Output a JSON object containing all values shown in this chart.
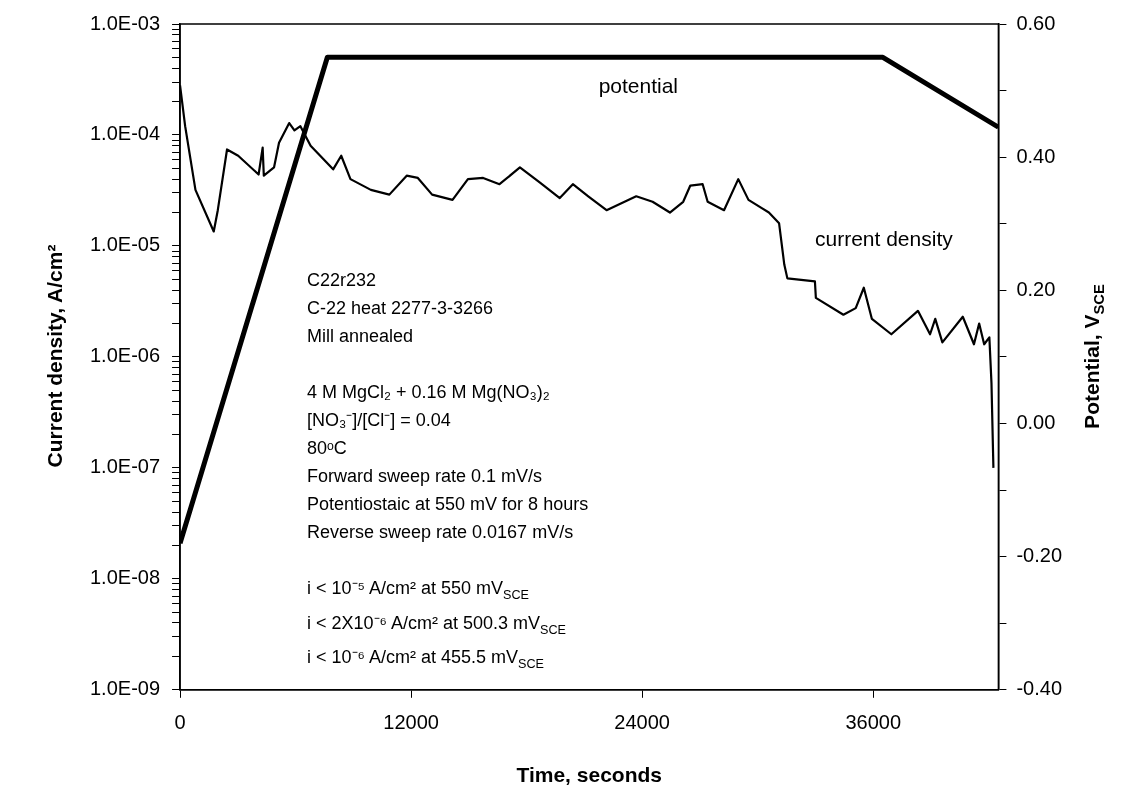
{
  "chart_data": {
    "type": "line",
    "xlabel": "Time, seconds",
    "ylabel": "Current density, A/cm²",
    "y2label": "Potential, V$_{SCE}$",
    "xlim": [
      0,
      42500
    ],
    "xticks": [
      0,
      12000,
      24000,
      36000
    ],
    "log": "y",
    "ylim": [
      1e-09,
      0.001
    ],
    "yticks": [
      {
        "value": 1e-09,
        "label": "1.0E-09"
      },
      {
        "value": 2e-09,
        "label": null
      },
      {
        "value": 3e-09,
        "label": null
      },
      {
        "value": 4e-09,
        "label": null
      },
      {
        "value": 5e-09,
        "label": null
      },
      {
        "value": 6e-09,
        "label": null
      },
      {
        "value": 7e-09,
        "label": null
      },
      {
        "value": 8e-09,
        "label": null
      },
      {
        "value": 9e-09,
        "label": null
      },
      {
        "value": 1e-08,
        "label": "1.0E-08"
      },
      {
        "value": 2e-08,
        "label": null
      },
      {
        "value": 3e-08,
        "label": null
      },
      {
        "value": 4e-08,
        "label": null
      },
      {
        "value": 5e-08,
        "label": null
      },
      {
        "value": 6e-08,
        "label": null
      },
      {
        "value": 7e-08,
        "label": null
      },
      {
        "value": 8e-08,
        "label": null
      },
      {
        "value": 9e-08,
        "label": null
      },
      {
        "value": 1e-07,
        "label": "1.0E-07"
      },
      {
        "value": 2e-07,
        "label": null
      },
      {
        "value": 3e-07,
        "label": null
      },
      {
        "value": 4e-07,
        "label": null
      },
      {
        "value": 5e-07,
        "label": null
      },
      {
        "value": 6e-07,
        "label": null
      },
      {
        "value": 7e-07,
        "label": null
      },
      {
        "value": 8e-07,
        "label": null
      },
      {
        "value": 9e-07,
        "label": null
      },
      {
        "value": 1e-06,
        "label": "1.0E-06"
      },
      {
        "value": 2e-06,
        "label": null
      },
      {
        "value": 3e-06,
        "label": null
      },
      {
        "value": 4e-06,
        "label": null
      },
      {
        "value": 5e-06,
        "label": null
      },
      {
        "value": 6e-06,
        "label": null
      },
      {
        "value": 7e-06,
        "label": null
      },
      {
        "value": 8e-06,
        "label": null
      },
      {
        "value": 9e-06,
        "label": null
      },
      {
        "value": 1e-05,
        "label": "1.0E-05"
      },
      {
        "value": 2e-05,
        "label": null
      },
      {
        "value": 3e-05,
        "label": null
      },
      {
        "value": 4e-05,
        "label": null
      },
      {
        "value": 5e-05,
        "label": null
      },
      {
        "value": 6e-05,
        "label": null
      },
      {
        "value": 7e-05,
        "label": null
      },
      {
        "value": 8e-05,
        "label": null
      },
      {
        "value": 9e-05,
        "label": null
      },
      {
        "value": 0.0001,
        "label": "1.0E-04"
      },
      {
        "value": 0.0002,
        "label": null
      },
      {
        "value": 0.0003,
        "label": null
      },
      {
        "value": 0.0004,
        "label": null
      },
      {
        "value": 0.0005,
        "label": null
      },
      {
        "value": 0.0006,
        "label": null
      },
      {
        "value": 0.0007,
        "label": null
      },
      {
        "value": 0.0008,
        "label": null
      },
      {
        "value": 0.0009,
        "label": null
      },
      {
        "value": 0.001,
        "label": "1.0E-03"
      }
    ],
    "y2lim": [
      -0.4,
      0.6
    ],
    "y2ticks": [
      {
        "value": -0.4,
        "label": "-0.40"
      },
      {
        "value": -0.3,
        "label": null
      },
      {
        "value": -0.2,
        "label": "-0.20"
      },
      {
        "value": -0.1,
        "label": null
      },
      {
        "value": 0,
        "label": "0.00"
      },
      {
        "value": 0.1,
        "label": null
      },
      {
        "value": 0.2,
        "label": "0.20"
      },
      {
        "value": 0.3,
        "label": null
      },
      {
        "value": 0.4,
        "label": "0.40"
      },
      {
        "value": 0.5,
        "label": null
      },
      {
        "value": 0.6,
        "label": "0.60"
      }
    ],
    "series": [
      {
        "name": "current density",
        "color": "#000000",
        "x": [
          0,
          265,
          800,
          1750,
          1960,
          2440,
          3020,
          4080,
          4290,
          4350,
          4880,
          5140,
          5670,
          5940,
          6250,
          6780,
          7950,
          8370,
          8850,
          9910,
          10870,
          11770,
          12350,
          13090,
          14150,
          14950,
          15740,
          16590,
          17650,
          18710,
          19720,
          20400,
          21200,
          22150,
          23690,
          24540,
          25440,
          26130,
          26500,
          27140,
          27400,
          28250,
          28990,
          29520,
          30580,
          31110,
          31380,
          31540,
          32970,
          33020,
          34450,
          35090,
          35510,
          35930,
          36940,
          38320,
          38950,
          39220,
          39590,
          40650,
          41230,
          41500,
          41760,
          42030,
          42140,
          42240
        ],
        "values": [
          0.00028,
          0.00012,
          3.2e-05,
          1.35e-05,
          2.1e-05,
          7.4e-05,
          6.5e-05,
          4.4e-05,
          7.7e-05,
          4.3e-05,
          5.1e-05,
          8.5e-05,
          0.000128,
          0.00011,
          0.00012,
          8e-05,
          4.9e-05,
          6.5e-05,
          4e-05,
          3.2e-05,
          2.9e-05,
          4.3e-05,
          4.1e-05,
          2.9e-05,
          2.6e-05,
          4e-05,
          4.1e-05,
          3.6e-05,
          5.1e-05,
          3.7e-05,
          2.7e-05,
          3.6e-05,
          2.8e-05,
          2.1e-05,
          2.8e-05,
          2.5e-05,
          2e-05,
          2.5e-05,
          3.5e-05,
          3.6e-05,
          2.5e-05,
          2.1e-05,
          4e-05,
          2.6e-05,
          2e-05,
          1.6e-05,
          6.8e-06,
          5.1e-06,
          4.8e-06,
          3.4e-06,
          2.4e-06,
          2.75e-06,
          4.2e-06,
          2.2e-06,
          1.6e-06,
          2.6e-06,
          1.6e-06,
          2.2e-06,
          1.35e-06,
          2.3e-06,
          1.3e-06,
          2e-06,
          1.3e-06,
          1.5e-06,
          5.8e-07,
          1e-07
        ]
      },
      {
        "name": "potential",
        "color": "#000000",
        "axis": "y2",
        "x": [
          0,
          7650,
          36500,
          42500
        ],
        "values": [
          -0.18,
          0.55,
          0.55,
          0.445
        ]
      }
    ],
    "annotations": [
      "C22r232\nC-22 heat 2277-3-3266\nMill annealed",
      "4 M MgCl₂ + 0.16 M Mg(NO₃)₂\n[NO₃⁻]/[Cl⁻] = 0.04\n80ᵒC\nForward sweep rate 0.1 mV/s\nPotentiostaic at 550 mV for 8 hours\nReverse sweep rate 0.0167 mV/s",
      "i < 10⁻⁵ A/cm² at 550 mV$_{SCE}$\ni < 2X10⁻⁶ A/cm² at 500.3 mV$_{SCE}$\ni < 10⁻⁶ A/cm² at 455.5 mV$_{SCE}$"
    ]
  }
}
